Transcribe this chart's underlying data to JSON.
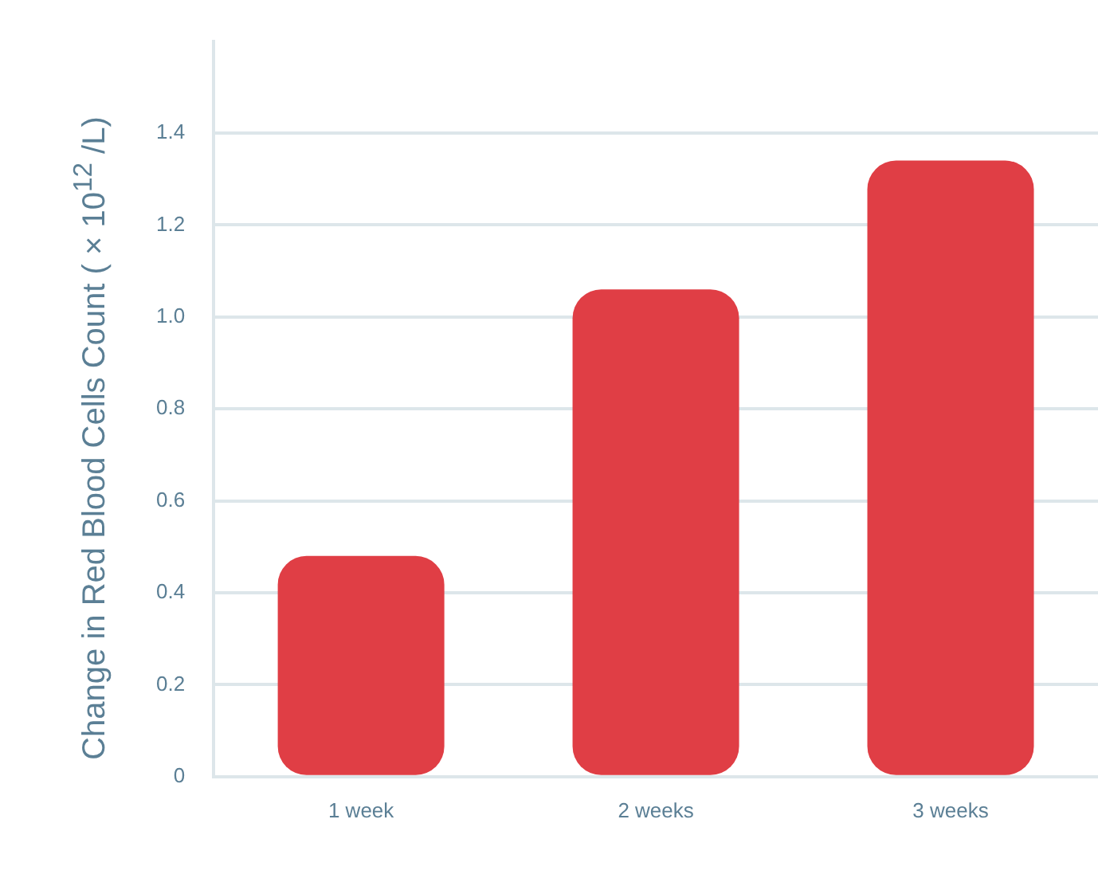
{
  "chart_data": {
    "type": "bar",
    "ylabel": "Change in Red Blood Cells Count ( × 10$^{12}$ /L)",
    "categories": [
      "1 week",
      "2 weeks",
      "3 weeks"
    ],
    "values": [
      0.48,
      1.06,
      1.34
    ],
    "color": "#e03e45",
    "ylim": [
      0,
      1.6
    ],
    "yticks": [
      0,
      0.2,
      0.4,
      0.6,
      0.8,
      {
        "value": 1,
        "label": "1.0"
      },
      1.2,
      1.4
    ],
    "grid": "y",
    "legend": false
  }
}
